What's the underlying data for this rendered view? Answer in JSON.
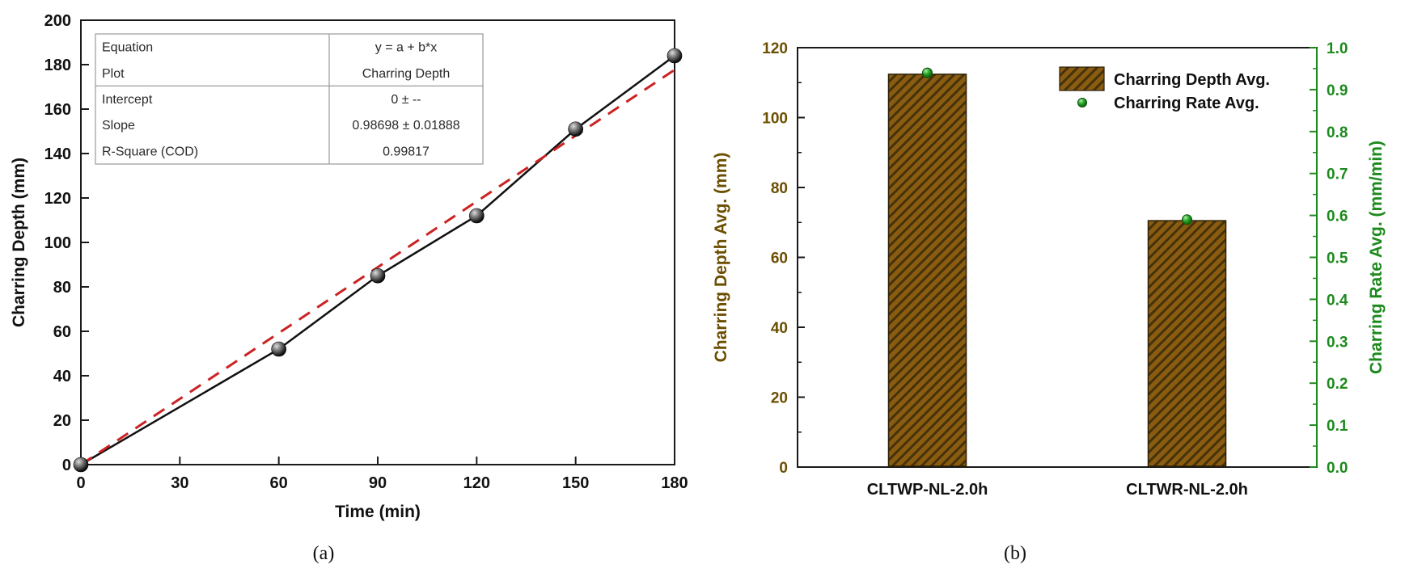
{
  "figure": {
    "background": "#ffffff",
    "captions": {
      "a": "(a)",
      "b": "(b)"
    }
  },
  "chart_data": [
    {
      "id": "a",
      "type": "line",
      "xlabel": "Time (min)",
      "ylabel": "Charring Depth (mm)",
      "xlim": [
        0,
        180
      ],
      "ylim": [
        0,
        200
      ],
      "xticks": [
        0,
        30,
        60,
        90,
        120,
        150,
        180
      ],
      "yticks": [
        0,
        20,
        40,
        60,
        80,
        100,
        120,
        140,
        160,
        180,
        200
      ],
      "grid": false,
      "series": [
        {
          "name": "Charring Depth",
          "type": "line-markers",
          "color": "#111111",
          "marker": "black-ball",
          "x": [
            0,
            60,
            90,
            120,
            150,
            180
          ],
          "y": [
            0,
            52,
            85,
            112,
            151,
            184
          ]
        },
        {
          "name": "Linear Fit",
          "type": "dashed-line",
          "color": "#cc2222",
          "x": [
            0,
            180
          ],
          "y": [
            0,
            177.66
          ]
        }
      ],
      "fit_table": {
        "rows": [
          {
            "label": "Equation",
            "value": "y = a + b*x"
          },
          {
            "label": "Plot",
            "value": "Charring Depth"
          },
          {
            "label": "Intercept",
            "value": "0 ± --"
          },
          {
            "label": "Slope",
            "value": "0.98698 ± 0.01888"
          },
          {
            "label": "R-Square (COD)",
            "value": "0.99817"
          }
        ]
      }
    },
    {
      "id": "b",
      "type": "bar",
      "categories": [
        "CLTWP-NL-2.0h",
        "CLTWR-NL-2.0h"
      ],
      "left_axis": {
        "label": "Charring Depth Avg. (mm)",
        "color": "#6b4e00",
        "lim": [
          0,
          120
        ],
        "ticks": [
          0,
          20,
          40,
          60,
          80,
          100,
          120
        ],
        "minor_step": 10
      },
      "right_axis": {
        "label": "Charring Rate Avg. (mm/min)",
        "color": "#1d8a1d",
        "lim": [
          0,
          1.0
        ],
        "ticks": [
          0.0,
          0.1,
          0.2,
          0.3,
          0.4,
          0.5,
          0.6,
          0.7,
          0.8,
          0.9,
          1.0
        ],
        "minor_step": 0.05
      },
      "series": [
        {
          "name": "Charring Depth Avg.",
          "axis": "left",
          "type": "bar",
          "values": [
            112.4,
            70.5
          ],
          "fill": "#8a5c12",
          "hatch_color": "#463208",
          "edge": "#2b1f06"
        },
        {
          "name": "Charring Rate  Avg.",
          "axis": "right",
          "type": "point",
          "values": [
            0.94,
            0.59
          ],
          "color": "#1f9e1f",
          "edge": "#0a4d0a"
        }
      ],
      "legend": {
        "position": "upper-right",
        "items": [
          "Charring Depth Avg.",
          "Charring Rate  Avg."
        ]
      }
    }
  ]
}
